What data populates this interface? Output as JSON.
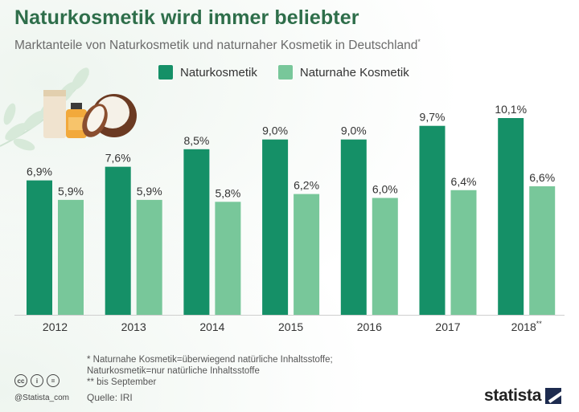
{
  "header": {
    "title": "Naturkosmetik wird immer beliebter",
    "subtitle": "Marktanteile von Naturkosmetik und naturnaher Kosmetik in Deutschland",
    "subtitle_mark": "*"
  },
  "legend": {
    "items": [
      {
        "label": "Naturkosmetik",
        "color": "#159067"
      },
      {
        "label": "Naturnahe Kosmetik",
        "color": "#78c79a"
      }
    ]
  },
  "chart_data": {
    "type": "bar",
    "title": "Naturkosmetik wird immer beliebter",
    "categories": [
      "2012",
      "2013",
      "2014",
      "2015",
      "2016",
      "2017",
      "2018"
    ],
    "category_suffixes": [
      "",
      "",
      "",
      "",
      "",
      "",
      "**"
    ],
    "series": [
      {
        "name": "Naturkosmetik",
        "color": "#159067",
        "values": [
          6.9,
          7.6,
          8.5,
          9.0,
          9.0,
          9.7,
          10.1
        ],
        "labels": [
          "6,9%",
          "7,6%",
          "8,5%",
          "9,0%",
          "9,0%",
          "9,7%",
          "10,1%"
        ]
      },
      {
        "name": "Naturnahe Kosmetik",
        "color": "#78c79a",
        "values": [
          5.9,
          5.9,
          5.8,
          6.2,
          6.0,
          6.4,
          6.6
        ],
        "labels": [
          "5,9%",
          "5,9%",
          "5,8%",
          "6,2%",
          "6,0%",
          "6,4%",
          "6,6%"
        ]
      }
    ],
    "ylim": [
      0,
      10.1
    ],
    "xlabel": "",
    "ylabel": "",
    "grid": false,
    "legend": "top"
  },
  "footer": {
    "footnote_lines": [
      "*  Naturnahe Kosmetik=überwiegend natürliche Inhaltsstoffe;",
      "    Naturkosmetik=nur natürliche Inhaltsstoffe",
      "** bis September"
    ],
    "source": "Quelle: IRI",
    "handle": "@Statista_com",
    "license_icons": [
      "cc",
      "i",
      "="
    ],
    "brand": "statista"
  }
}
